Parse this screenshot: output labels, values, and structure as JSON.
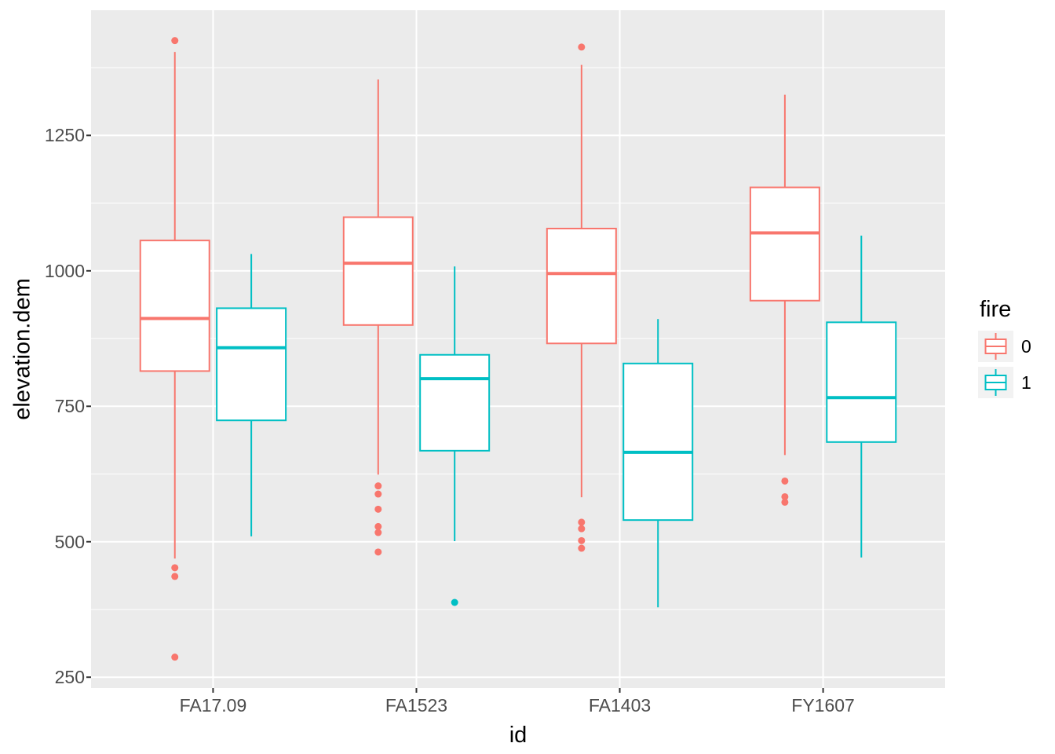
{
  "chart_data": {
    "type": "boxplot",
    "title": "",
    "xlabel": "id",
    "ylabel": "elevation.dem",
    "x_categories": [
      "FA17.09",
      "FA1523",
      "FA1403",
      "FY1607"
    ],
    "y_ticks": [
      250,
      500,
      750,
      1000,
      1250
    ],
    "y_minor_gridlines": [
      375,
      625,
      875,
      1125,
      1375
    ],
    "ylim": [
      230,
      1481
    ],
    "grid": "on",
    "panel_style": "ggplot-grey",
    "legend": {
      "title": "fire",
      "position": "right",
      "entries": [
        {
          "label": "0",
          "color": "#F8766D"
        },
        {
          "label": "1",
          "color": "#00BFC4"
        }
      ]
    },
    "series": [
      {
        "name": "0",
        "color": "#F8766D",
        "boxes": [
          {
            "category": "FA17.09",
            "whisker_low": 469,
            "q1": 815,
            "median": 912,
            "q3": 1056,
            "whisker_high": 1404,
            "outliers": [
              1425,
              452,
              436,
              287
            ]
          },
          {
            "category": "FA1523",
            "whisker_low": 624,
            "q1": 900,
            "median": 1014,
            "q3": 1099,
            "whisker_high": 1353,
            "outliers": [
              603,
              588,
              560,
              528,
              517,
              481
            ]
          },
          {
            "category": "FA1403",
            "whisker_low": 582,
            "q1": 866,
            "median": 995,
            "q3": 1078,
            "whisker_high": 1380,
            "outliers": [
              1413,
              536,
              524,
              502,
              488
            ]
          },
          {
            "category": "FY1607",
            "whisker_low": 660,
            "q1": 945,
            "median": 1070,
            "q3": 1154,
            "whisker_high": 1325,
            "outliers": [
              612,
              583,
              573
            ]
          }
        ]
      },
      {
        "name": "1",
        "color": "#00BFC4",
        "boxes": [
          {
            "category": "FA17.09",
            "whisker_low": 510,
            "q1": 724,
            "median": 858,
            "q3": 931,
            "whisker_high": 1031,
            "outliers": []
          },
          {
            "category": "FA1523",
            "whisker_low": 501,
            "q1": 668,
            "median": 801,
            "q3": 845,
            "whisker_high": 1008,
            "outliers": [
              388
            ]
          },
          {
            "category": "FA1403",
            "whisker_low": 379,
            "q1": 540,
            "median": 665,
            "q3": 829,
            "whisker_high": 911,
            "outliers": []
          },
          {
            "category": "FY1607",
            "whisker_low": 471,
            "q1": 684,
            "median": 766,
            "q3": 905,
            "whisker_high": 1065,
            "outliers": []
          }
        ]
      }
    ]
  },
  "colors": {
    "panel_background": "#EBEBEB",
    "gridline": "#FFFFFF",
    "tick_text": "#4D4D4D",
    "title_text": "#000000",
    "tick_mark": "#333333",
    "legend_key_background": "#F2F2F2",
    "box_fill": "#FFFFFF"
  }
}
